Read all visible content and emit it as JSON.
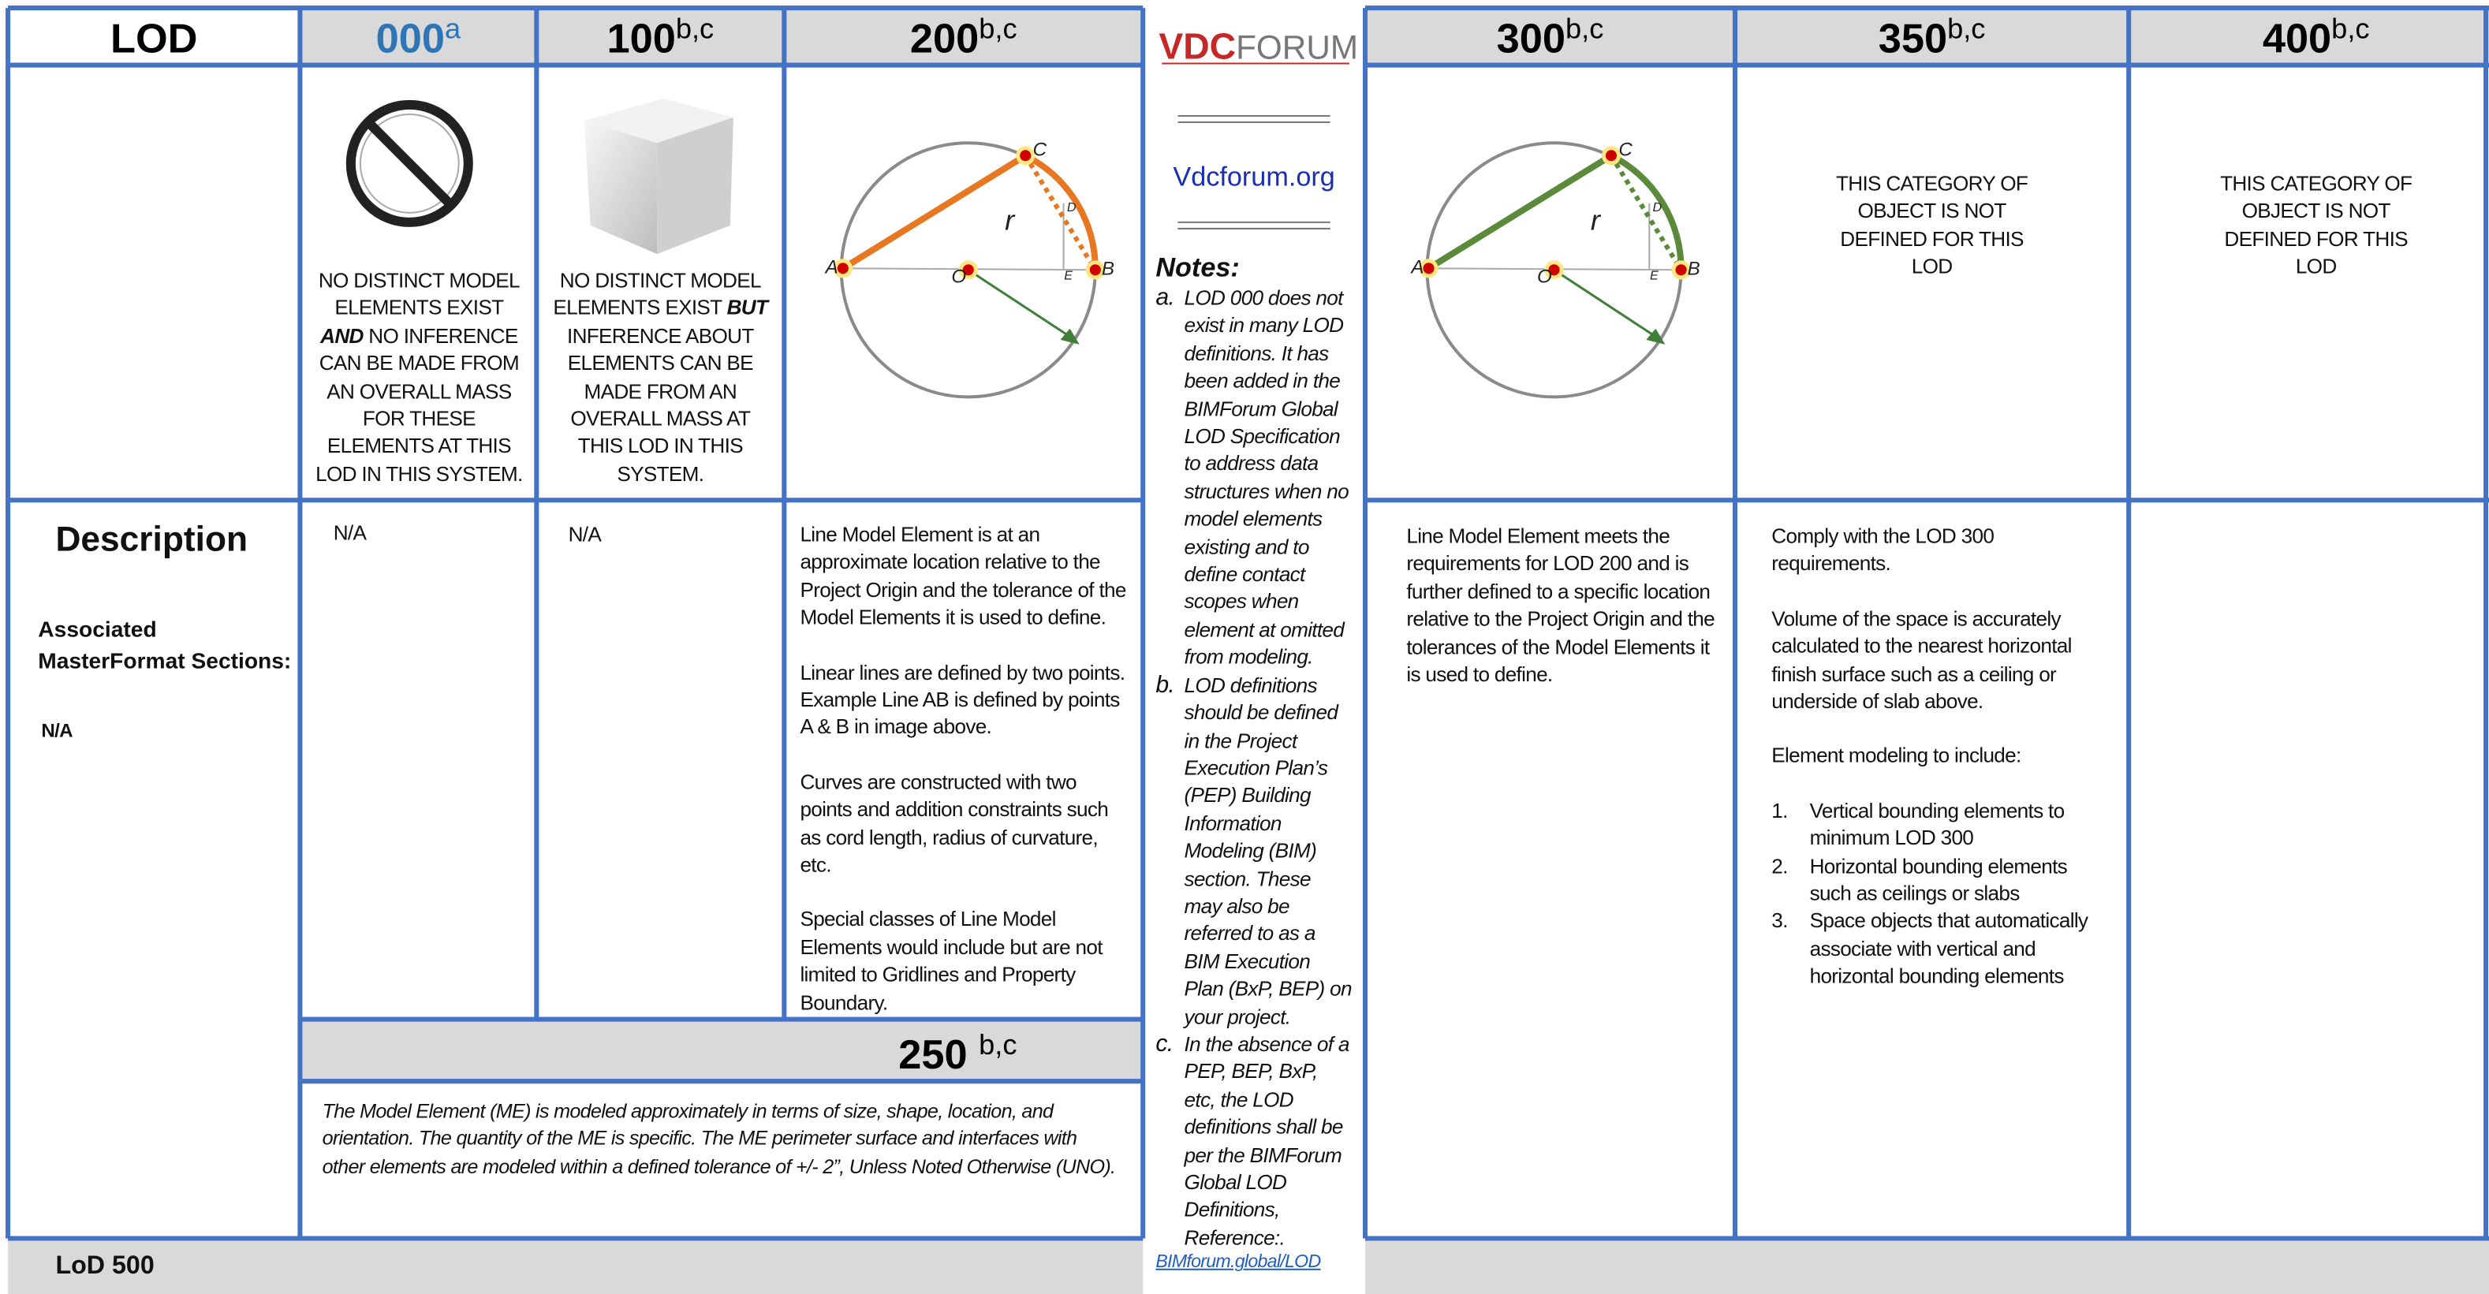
{
  "header": {
    "lod_label": "LOD",
    "levels": [
      {
        "code": "000",
        "note": "a"
      },
      {
        "code": "100",
        "note": "b,c"
      },
      {
        "code": "200",
        "note": "b,c"
      },
      {
        "code": "300",
        "note": "b,c"
      },
      {
        "code": "350",
        "note": "b,c"
      },
      {
        "code": "400",
        "note": "b,c"
      }
    ]
  },
  "logo": {
    "brand": "VDC",
    "name": "FORUM"
  },
  "site_link": "Vdcforum.org",
  "row_labels": {
    "description": "Description",
    "masterformat": "Associated MasterFormat Sections:",
    "masterformat_value": "N/A",
    "lod_500": "LoD 500"
  },
  "cells": {
    "lod_000": {
      "graphic_text": [
        "NO DISTINCT MODEL ELEMENTS EXIST ",
        "AND",
        " NO INFERENCE CAN BE MADE FROM AN OVERALL MASS FOR THESE ELEMENTS AT THIS LOD IN THIS SYSTEM."
      ],
      "description": "N/A"
    },
    "lod_100": {
      "graphic_text": [
        "NO DISTINCT MODEL ELEMENTS EXIST ",
        "BUT",
        " INFERENCE ABOUT ELEMENTS CAN BE MADE FROM AN OVERALL MASS AT THIS LOD IN THIS SYSTEM."
      ],
      "description": "N/A"
    },
    "lod_200": {
      "description": [
        "Line Model Element is at an approximate location relative to the Project Origin and the tolerance of the Model Elements it is used to define.",
        "Linear lines are defined by two points. Example Line AB is defined by points A & B in image above.",
        "Curves are constructed with two points and addition constraints such as cord length, radius of curvature, etc.",
        "Special classes of Line Model Elements would include but are not limited to Gridlines and Property Boundary."
      ]
    },
    "lod_250": {
      "code": "250",
      "note": "b,c",
      "description": "The Model Element (ME) is modeled approximately in terms of size, shape, location, and orientation. The quantity of the ME is specific. The ME perimeter surface and interfaces with other elements are modeled within a defined tolerance of +/- 2”, Unless Noted Otherwise (UNO)."
    },
    "lod_300": {
      "description": "Line Model Element meets the requirements for LOD 200 and is further defined to a specific location relative to the Project Origin and the tolerances of the Model Elements it is used to define."
    },
    "lod_350": {
      "graphic_text": "THIS CATEGORY OF OBJECT IS NOT DEFINED FOR THIS LOD",
      "description": {
        "paragraphs": [
          "Comply with the LOD 300 requirements.",
          "Volume of the space is accurately calculated to the nearest horizontal finish surface such as a ceiling or underside of slab above.",
          "Element modeling to include:"
        ],
        "list": [
          {
            "marker": "1.",
            "text": "Vertical bounding elements to minimum LOD 300"
          },
          {
            "marker": "2.",
            "text": "Horizontal bounding elements such as ceilings or slabs"
          },
          {
            "marker": "3.",
            "text": "Space objects that automatically associate with vertical and horizontal bounding elements"
          }
        ]
      }
    },
    "lod_400": {
      "graphic_text": "THIS CATEGORY OF OBJECT IS NOT DEFINED FOR THIS LOD"
    }
  },
  "diagram_labels": {
    "a": "A",
    "b": "B",
    "c": "C",
    "d": "D",
    "e": "E",
    "o": "O",
    "r": "r"
  },
  "notes": {
    "title": "Notes:",
    "items": [
      {
        "marker": "a.",
        "text": "LOD 000 does not exist in many LOD definitions. It has been added in the BIMForum Global LOD Specification to address data structures when no model elements existing and to define contact scopes when element at omitted from modeling."
      },
      {
        "marker": "b.",
        "text": "LOD definitions should be defined in the Project Execution Plan’s (PEP) Building Information Modeling (BIM) section. These may also be referred to as a BIM Execution Plan (BxP, BEP) on your project."
      },
      {
        "marker": "c.",
        "text": "In the absence of a PEP, BEP, BxP, etc, the LOD definitions shall be per the BIMForum Global LOD Definitions, Reference:."
      }
    ],
    "link": "BIMforum.global/LOD"
  }
}
